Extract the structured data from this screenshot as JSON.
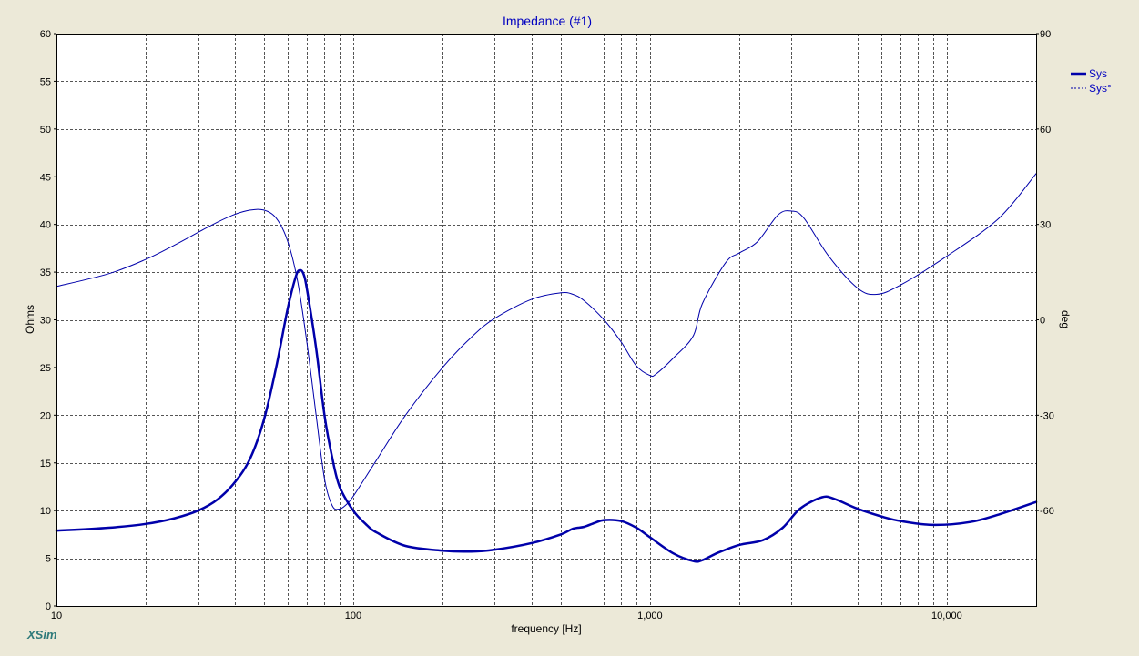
{
  "app": {
    "brand": "XSim"
  },
  "chart_data": {
    "type": "line",
    "title": "Impedance (#1)",
    "xlabel": "frequency [Hz]",
    "ylabel": "Ohms",
    "y2label": "deg",
    "xscale": "log",
    "xlim": [
      10,
      20000
    ],
    "ylim": [
      0,
      60
    ],
    "y2lim": [
      -90,
      90
    ],
    "grid": true,
    "legend_position": "right",
    "x_ticks": [
      {
        "value": 10,
        "label": "10"
      },
      {
        "value": 100,
        "label": "100"
      },
      {
        "value": 1000,
        "label": "1,000"
      },
      {
        "value": 10000,
        "label": "10,000"
      }
    ],
    "y_ticks": [
      {
        "value": 0,
        "label": "0"
      },
      {
        "value": 5,
        "label": "5"
      },
      {
        "value": 10,
        "label": "10"
      },
      {
        "value": 15,
        "label": "15"
      },
      {
        "value": 20,
        "label": "20"
      },
      {
        "value": 25,
        "label": "25"
      },
      {
        "value": 30,
        "label": "30"
      },
      {
        "value": 35,
        "label": "35"
      },
      {
        "value": 40,
        "label": "40"
      },
      {
        "value": 45,
        "label": "45"
      },
      {
        "value": 50,
        "label": "50"
      },
      {
        "value": 55,
        "label": "55"
      },
      {
        "value": 60,
        "label": "60"
      }
    ],
    "y2_ticks": [
      {
        "value": 90,
        "label": "90"
      },
      {
        "value": 60,
        "label": "60"
      },
      {
        "value": 30,
        "label": "30"
      },
      {
        "value": 0,
        "label": "0"
      },
      {
        "value": -30,
        "label": "-30"
      },
      {
        "value": -60,
        "label": "-60"
      }
    ],
    "series": [
      {
        "name": "Sys",
        "axis": "left",
        "color": "#0000aa",
        "style": "solid-thick",
        "points": [
          [
            10,
            7.9
          ],
          [
            15,
            8.2
          ],
          [
            20,
            8.6
          ],
          [
            25,
            9.2
          ],
          [
            30,
            10.0
          ],
          [
            35,
            11.2
          ],
          [
            40,
            13.0
          ],
          [
            45,
            15.5
          ],
          [
            50,
            19.5
          ],
          [
            55,
            25.0
          ],
          [
            60,
            31.0
          ],
          [
            64,
            34.5
          ],
          [
            66,
            35.2
          ],
          [
            68,
            34.8
          ],
          [
            70,
            33.0
          ],
          [
            75,
            27.0
          ],
          [
            80,
            20.0
          ],
          [
            85,
            15.5
          ],
          [
            90,
            12.5
          ],
          [
            100,
            10.0
          ],
          [
            110,
            8.6
          ],
          [
            120,
            7.7
          ],
          [
            150,
            6.3
          ],
          [
            200,
            5.8
          ],
          [
            250,
            5.7
          ],
          [
            300,
            5.9
          ],
          [
            400,
            6.6
          ],
          [
            500,
            7.5
          ],
          [
            550,
            8.1
          ],
          [
            600,
            8.3
          ],
          [
            650,
            8.7
          ],
          [
            700,
            9.0
          ],
          [
            800,
            8.9
          ],
          [
            900,
            8.2
          ],
          [
            1000,
            7.2
          ],
          [
            1200,
            5.5
          ],
          [
            1400,
            4.7
          ],
          [
            1500,
            4.8
          ],
          [
            1700,
            5.6
          ],
          [
            2000,
            6.4
          ],
          [
            2400,
            6.9
          ],
          [
            2800,
            8.2
          ],
          [
            3200,
            10.2
          ],
          [
            3800,
            11.4
          ],
          [
            4200,
            11.2
          ],
          [
            5000,
            10.2
          ],
          [
            6000,
            9.4
          ],
          [
            7000,
            8.9
          ],
          [
            9000,
            8.5
          ],
          [
            12000,
            8.8
          ],
          [
            15000,
            9.6
          ],
          [
            20000,
            10.9
          ]
        ]
      },
      {
        "name": "Sys°",
        "axis": "right",
        "color": "#0000aa",
        "style": "dashed-thin",
        "points": [
          [
            10,
            10.5
          ],
          [
            15,
            14.5
          ],
          [
            20,
            19.0
          ],
          [
            25,
            23.5
          ],
          [
            30,
            27.5
          ],
          [
            35,
            30.8
          ],
          [
            40,
            33.2
          ],
          [
            45,
            34.5
          ],
          [
            50,
            34.5
          ],
          [
            55,
            32.0
          ],
          [
            60,
            25.0
          ],
          [
            65,
            12.0
          ],
          [
            70,
            -8.0
          ],
          [
            75,
            -30.0
          ],
          [
            80,
            -50.0
          ],
          [
            85,
            -58.5
          ],
          [
            90,
            -59.5
          ],
          [
            95,
            -58.0
          ],
          [
            100,
            -55.5
          ],
          [
            120,
            -44.0
          ],
          [
            150,
            -30.0
          ],
          [
            200,
            -15.0
          ],
          [
            250,
            -5.5
          ],
          [
            300,
            0.5
          ],
          [
            400,
            6.5
          ],
          [
            500,
            8.5
          ],
          [
            550,
            8.0
          ],
          [
            600,
            6.0
          ],
          [
            700,
            0.0
          ],
          [
            800,
            -7.0
          ],
          [
            900,
            -14.5
          ],
          [
            1000,
            -17.5
          ],
          [
            1050,
            -17.0
          ],
          [
            1200,
            -12.0
          ],
          [
            1400,
            -5.0
          ],
          [
            1500,
            5.0
          ],
          [
            1800,
            18.0
          ],
          [
            2000,
            21.0
          ],
          [
            2300,
            24.5
          ],
          [
            2700,
            33.0
          ],
          [
            3000,
            34.2
          ],
          [
            3300,
            32.0
          ],
          [
            4000,
            20.0
          ],
          [
            5000,
            10.0
          ],
          [
            5800,
            8.0
          ],
          [
            7000,
            11.0
          ],
          [
            10000,
            20.0
          ],
          [
            15000,
            32.0
          ],
          [
            20000,
            46.0
          ]
        ]
      }
    ]
  }
}
